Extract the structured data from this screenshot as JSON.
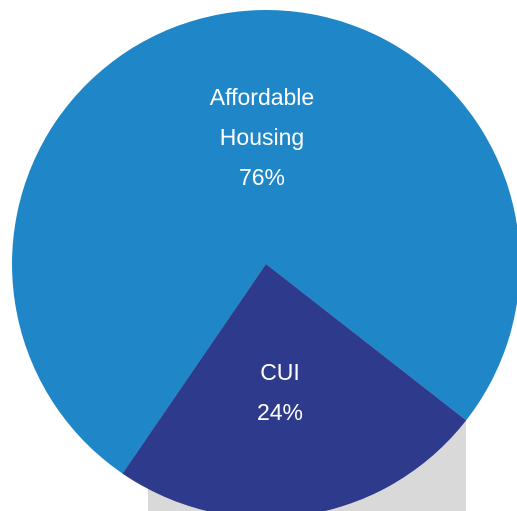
{
  "chart_data": {
    "type": "pie",
    "categories": [
      "Affordable Housing",
      "CUI"
    ],
    "values": [
      76,
      24
    ],
    "value_labels": [
      "76%",
      "24%"
    ],
    "colors": [
      "#1f86c8",
      "#2e3a8c"
    ]
  }
}
